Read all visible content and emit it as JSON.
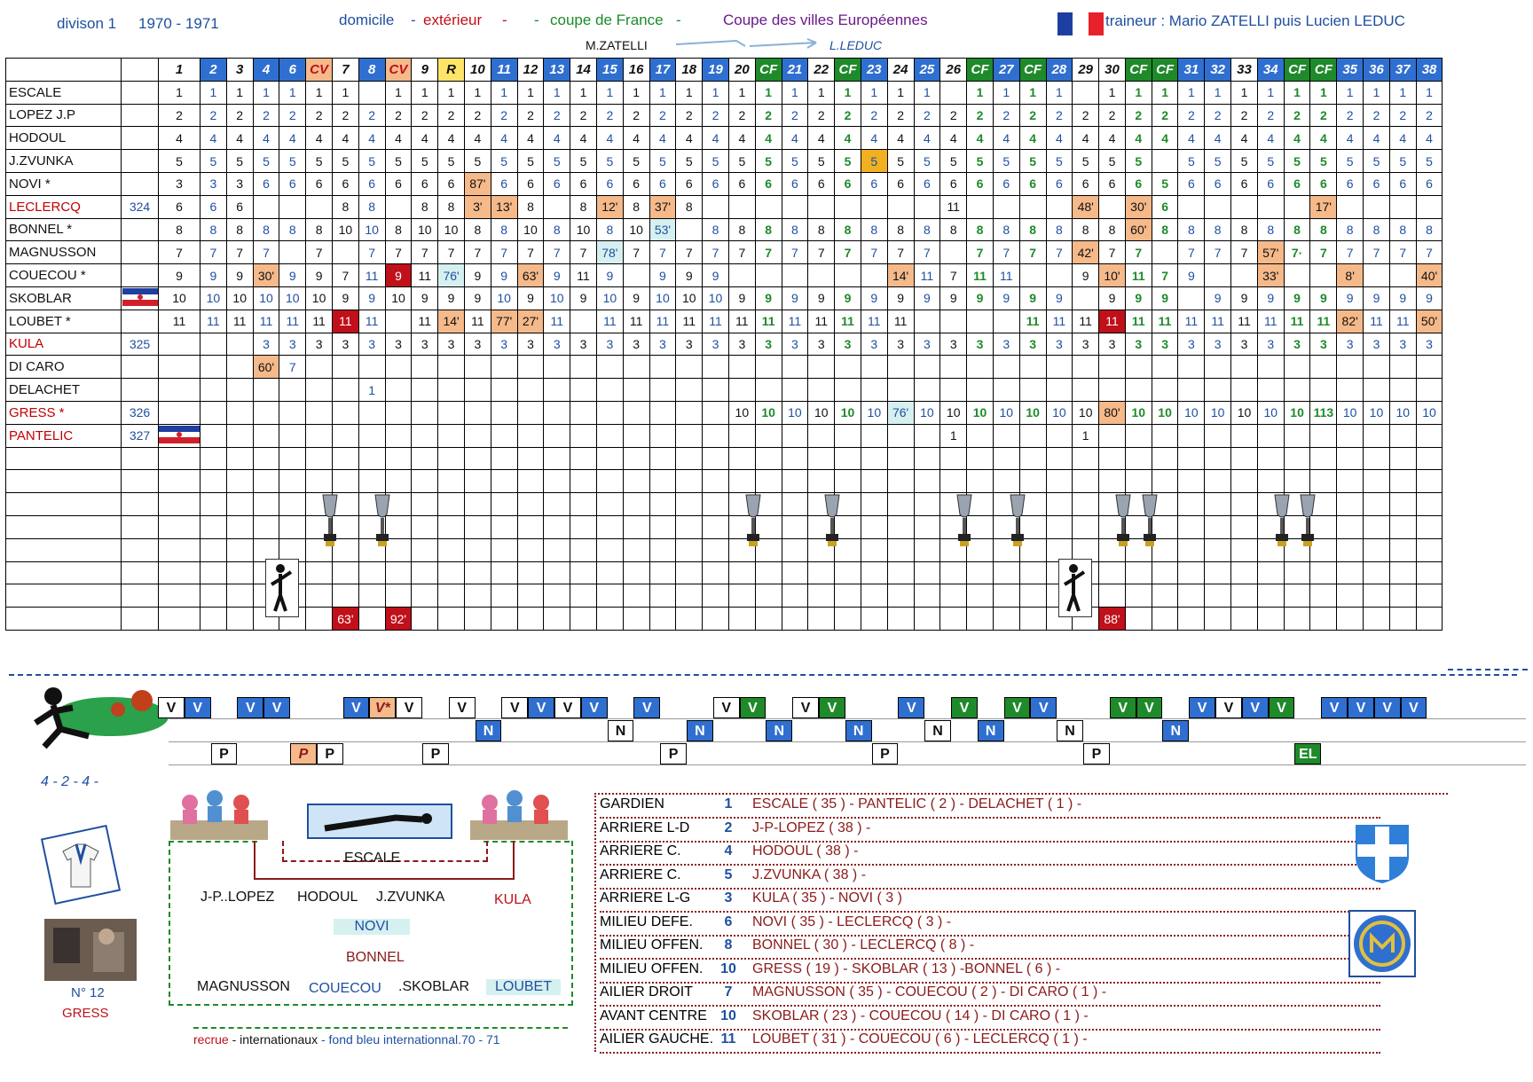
{
  "header": {
    "season_label": "divison 1",
    "season_years": "1970 - 1971",
    "legend_home": "domicile",
    "legend_away": "extérieur",
    "legend_cup": "coupe de France",
    "legend_euro": "Coupe des villes Européennes",
    "legend_sep1": "-",
    "legend_sep2": "-",
    "legend_sep3": "-",
    "legend_sep4": "-",
    "coach": "traineur  : Mario ZATELLI puis Lucien LEDUC",
    "coach_from": "M.ZATELLI",
    "coach_to": "L.LEDUC"
  },
  "columns": [
    "1",
    "2",
    "3",
    "4",
    "6",
    "CV",
    "7",
    "8",
    "CV",
    "9",
    "R",
    "10",
    "11",
    "12",
    "13",
    "14",
    "15",
    "16",
    "17",
    "18",
    "19",
    "20",
    "CF",
    "21",
    "22",
    "CF",
    "23",
    "24",
    "25",
    "26",
    "CF",
    "27",
    "CF",
    "28",
    "29",
    "30",
    "CF",
    "CF",
    "31",
    "32",
    "33",
    "34",
    "CF",
    "CF",
    "35",
    "36",
    "37",
    "38"
  ],
  "column_styles": [
    "w",
    "b",
    "w",
    "b",
    "b",
    "o",
    "w",
    "b",
    "o",
    "w",
    "y",
    "w",
    "b",
    "w",
    "b",
    "w",
    "b",
    "w",
    "b",
    "w",
    "b",
    "w",
    "g",
    "b",
    "w",
    "g",
    "b",
    "w",
    "b",
    "w",
    "g",
    "b",
    "g",
    "b",
    "w",
    "w",
    "g",
    "g",
    "b",
    "b",
    "w",
    "b",
    "g",
    "g",
    "b",
    "b",
    "b",
    "b"
  ],
  "players": [
    {
      "name": "ESCALE",
      "num": "",
      "red": false,
      "icon": "goalkeeper-icon",
      "cells": [
        "1",
        "1",
        "1",
        "1",
        "1",
        "1",
        "1",
        "",
        "1",
        "1",
        "1",
        "1",
        "1",
        "1",
        "1",
        "1",
        "1",
        "1",
        "1",
        "1",
        "1",
        "1",
        "1",
        "1",
        "1",
        "1",
        "1",
        "1",
        "1",
        "",
        "1",
        "1",
        "1",
        "1",
        "",
        "1",
        "1",
        "1",
        "1",
        "1",
        "1",
        "1",
        "1",
        "1",
        "1",
        "1",
        "1",
        "1"
      ]
    },
    {
      "name": "LOPEZ J.P",
      "num": "",
      "red": false,
      "cells": [
        "2",
        "2",
        "2",
        "2",
        "2",
        "2",
        "2",
        "2",
        "2",
        "2",
        "2",
        "2",
        "2",
        "2",
        "2",
        "2",
        "2",
        "2",
        "2",
        "2",
        "2",
        "2",
        "2",
        "2",
        "2",
        "2",
        "2",
        "2",
        "2",
        "2",
        "2",
        "2",
        "2",
        "2",
        "2",
        "2",
        "2",
        "2",
        "2",
        "2",
        "2",
        "2",
        "2",
        "2",
        "2",
        "2",
        "2",
        "2"
      ]
    },
    {
      "name": "HODOUL",
      "num": "",
      "red": false,
      "cells": [
        "4",
        "4",
        "4",
        "4",
        "4",
        "4",
        "4",
        "4",
        "4",
        "4",
        "4",
        "4",
        "4",
        "4",
        "4",
        "4",
        "4",
        "4",
        "4",
        "4",
        "4",
        "4",
        "4",
        "4",
        "4",
        "4",
        "4",
        "4",
        "4",
        "4",
        "4",
        "4",
        "4",
        "4",
        "4",
        "4",
        "4",
        "4",
        "4",
        "4",
        "4",
        "4",
        "4",
        "4",
        "4",
        "4",
        "4",
        "4"
      ]
    },
    {
      "name": "J.ZVUNKA",
      "num": "",
      "red": false,
      "cells": [
        "5",
        "5",
        "5",
        "5",
        "5",
        "5",
        "5",
        "5",
        "5",
        "5",
        "5",
        "5",
        "5",
        "5",
        "5",
        "5",
        "5",
        "5",
        "5",
        "5",
        "5",
        "5",
        "5",
        "5",
        "5",
        "5",
        "5",
        "5",
        "5",
        "5",
        "5",
        "5",
        "5",
        "5",
        "5",
        "5",
        "5",
        "",
        "5",
        "5",
        "5",
        "5",
        "5",
        "5",
        "5",
        "5",
        "5",
        "5"
      ]
    },
    {
      "name": "NOVI *",
      "num": "",
      "red": false,
      "cells": [
        "3",
        "3",
        "3",
        "6",
        "6",
        "6",
        "6",
        "6",
        "6",
        "6",
        "6",
        "87'",
        "6",
        "6",
        "6",
        "6",
        "6",
        "6",
        "6",
        "6",
        "6",
        "6",
        "6",
        "6",
        "6",
        "6",
        "6",
        "6",
        "6",
        "6",
        "6",
        "6",
        "6",
        "6",
        "6",
        "6",
        "6",
        "5",
        "6",
        "6",
        "6",
        "6",
        "6",
        "6",
        "6",
        "6",
        "6",
        "6"
      ]
    },
    {
      "name": "LECLERCQ",
      "num": "324",
      "red": true,
      "cells": [
        "6",
        "6",
        "6",
        "",
        "",
        "",
        "8",
        "8",
        "",
        "8",
        "8",
        "3'",
        "13'",
        "8",
        "",
        "8",
        "12'",
        "8",
        "37'",
        "8",
        "",
        "",
        "",
        "",
        "",
        "",
        "",
        "",
        "",
        "11",
        "",
        "",
        "",
        "",
        "48'",
        "",
        "30'",
        "6",
        "",
        "",
        "",
        "",
        "",
        "17'",
        "",
        "",
        "",
        ""
      ]
    },
    {
      "name": "BONNEL *",
      "num": "",
      "red": false,
      "cells": [
        "8",
        "8",
        "8",
        "8",
        "8",
        "8",
        "10",
        "10",
        "8",
        "10",
        "10",
        "8",
        "8",
        "10",
        "8",
        "10",
        "8",
        "10",
        "53'",
        "",
        "8",
        "8",
        "8",
        "8",
        "8",
        "8",
        "8",
        "8",
        "8",
        "8",
        "8",
        "8",
        "8",
        "8",
        "8",
        "8",
        "60'",
        "8",
        "8",
        "8",
        "8",
        "8",
        "8",
        "8",
        "8",
        "8",
        "8",
        "8"
      ]
    },
    {
      "name": "MAGNUSSON",
      "num": "",
      "red": false,
      "icon": "sweden-flag-icon",
      "cells": [
        "7",
        "7",
        "7",
        "7",
        "",
        "7",
        "",
        "7",
        "7",
        "7",
        "7",
        "7",
        "7",
        "7",
        "7",
        "7",
        "78'",
        "7",
        "7",
        "7",
        "7",
        "7",
        "7",
        "7",
        "7",
        "7",
        "7",
        "7",
        "7",
        "",
        "7",
        "7",
        "7",
        "7",
        "42'",
        "7",
        "7",
        "",
        "7",
        "7",
        "7",
        "57'",
        "7·",
        "7",
        "7",
        "7",
        "7",
        "7"
      ]
    },
    {
      "name": "COUECOU *",
      "num": "",
      "red": false,
      "cells": [
        "9",
        "9",
        "9",
        "30'",
        "9",
        "9",
        "7",
        "11",
        "9",
        "11",
        "76'",
        "9",
        "9",
        "63'",
        "9",
        "11",
        "9",
        "",
        "9",
        "9",
        "9",
        "",
        "",
        "",
        "",
        "",
        "",
        "14'",
        "11",
        "7",
        "11",
        "11",
        "",
        "",
        "9",
        "10'",
        "11",
        "7",
        "9",
        "",
        "",
        "33'",
        "",
        "",
        "8'",
        "",
        "",
        "40'"
      ]
    },
    {
      "name": "SKOBLAR",
      "num": "",
      "red": false,
      "icon": "yugoslavia-flag-icon",
      "cells": [
        "10",
        "10",
        "10",
        "10",
        "10",
        "10",
        "9",
        "9",
        "10",
        "9",
        "9",
        "9",
        "10",
        "9",
        "10",
        "9",
        "10",
        "9",
        "10",
        "10",
        "10",
        "9",
        "9",
        "9",
        "9",
        "9",
        "9",
        "9",
        "9",
        "9",
        "9",
        "9",
        "9",
        "9",
        "",
        "9",
        "9",
        "9",
        "",
        "9",
        "9",
        "9",
        "9",
        "9",
        "9",
        "9",
        "9",
        "9"
      ]
    },
    {
      "name": "LOUBET *",
      "num": "",
      "red": false,
      "cells": [
        "11",
        "11",
        "11",
        "11",
        "11",
        "11",
        "11",
        "11",
        "",
        "11",
        "14'",
        "11",
        "77'",
        "27'",
        "11",
        "",
        "11",
        "11",
        "11",
        "11",
        "11",
        "11",
        "11",
        "11",
        "11",
        "11",
        "11",
        "11",
        "",
        "",
        "",
        "",
        "11",
        "11",
        "11",
        "11",
        "11",
        "11",
        "11",
        "11",
        "11",
        "11",
        "11",
        "11",
        "82'",
        "11",
        "11",
        "50'"
      ]
    },
    {
      "name": "KULA",
      "num": "325",
      "red": true,
      "cells": [
        "",
        "",
        "",
        "3",
        "3",
        "3",
        "3",
        "3",
        "3",
        "3",
        "3",
        "3",
        "3",
        "3",
        "3",
        "3",
        "3",
        "3",
        "3",
        "3",
        "3",
        "3",
        "3",
        "3",
        "3",
        "3",
        "3",
        "3",
        "3",
        "3",
        "3",
        "3",
        "3",
        "3",
        "3",
        "3",
        "3",
        "3",
        "3",
        "3",
        "3",
        "3",
        "3",
        "3",
        "3",
        "3",
        "3",
        "3"
      ]
    },
    {
      "name": "DI CARO",
      "num": "",
      "red": false,
      "cells": [
        "",
        "",
        "",
        "60'",
        "7",
        "",
        "",
        "",
        "",
        "",
        "",
        "",
        "",
        "",
        "",
        "",
        "",
        "",
        "",
        "",
        "",
        "",
        "",
        "",
        "",
        "",
        "",
        "",
        "",
        "",
        "",
        "",
        "",
        "",
        "",
        "",
        "",
        "",
        "",
        "",
        "",
        "",
        "",
        "",
        "",
        "",
        "",
        ""
      ]
    },
    {
      "name": "DELACHET",
      "num": "",
      "red": false,
      "cells": [
        "",
        "",
        "",
        "",
        "",
        "",
        "",
        "1",
        "",
        "",
        "",
        "",
        "",
        "",
        "",
        "",
        "",
        "",
        "",
        "",
        "",
        "",
        "",
        "",
        "",
        "",
        "",
        "",
        "",
        "",
        "",
        "",
        "",
        "",
        "",
        "",
        "",
        "",
        "",
        "",
        "",
        "",
        "",
        "",
        "",
        "",
        "",
        ""
      ]
    },
    {
      "name": "GRESS *",
      "num": "326",
      "red": true,
      "cells": [
        "",
        "",
        "",
        "",
        "",
        "",
        "",
        "",
        "",
        "",
        "",
        "",
        "",
        "",
        "",
        "",
        "",
        "",
        "",
        "",
        "",
        "10",
        "10",
        "10",
        "10",
        "10",
        "10",
        "76'",
        "10",
        "10",
        "10",
        "10",
        "10",
        "10",
        "10",
        "80'",
        "10",
        "10",
        "10",
        "10",
        "10",
        "10",
        "10",
        "113",
        "10",
        "10",
        "10",
        "10"
      ]
    },
    {
      "name": "PANTELIC",
      "num": "327",
      "red": true,
      "icon": "yugoslavia-flag-icon",
      "cells": [
        "",
        "",
        "",
        "",
        "",
        "",
        "",
        "",
        "",
        "",
        "",
        "",
        "",
        "",
        "",
        "",
        "",
        "",
        "",
        "",
        "",
        "",
        "",
        "",
        "",
        "",
        "",
        "",
        "",
        "1",
        "",
        "",
        "",
        "",
        "1",
        "",
        "",
        "",
        "",
        "",
        "",
        "",
        "",
        "",
        "",
        "",
        "",
        ""
      ]
    }
  ],
  "minute_cells": [
    {
      "col": 6,
      "text": "63'"
    },
    {
      "col": 8,
      "text": "92'"
    },
    {
      "col": 35,
      "text": "88'"
    }
  ],
  "results": {
    "v_row": [
      {
        "col": 0,
        "t": "V",
        "s": "w"
      },
      {
        "col": 1,
        "t": "V",
        "s": "b"
      },
      {
        "col": 3,
        "t": "V",
        "s": "b"
      },
      {
        "col": 4,
        "t": "V",
        "s": "b"
      },
      {
        "col": 7,
        "t": "V",
        "s": "b"
      },
      {
        "col": 8,
        "t": "V*",
        "s": "o"
      },
      {
        "col": 9,
        "t": "V",
        "s": "w"
      },
      {
        "col": 11,
        "t": "V",
        "s": "w"
      },
      {
        "col": 13,
        "t": "V",
        "s": "w"
      },
      {
        "col": 14,
        "t": "V",
        "s": "b"
      },
      {
        "col": 15,
        "t": "V",
        "s": "w"
      },
      {
        "col": 16,
        "t": "V",
        "s": "b"
      },
      {
        "col": 18,
        "t": "V",
        "s": "b"
      },
      {
        "col": 21,
        "t": "V",
        "s": "w"
      },
      {
        "col": 22,
        "t": "V",
        "s": "g"
      },
      {
        "col": 24,
        "t": "V",
        "s": "w"
      },
      {
        "col": 25,
        "t": "V",
        "s": "g"
      },
      {
        "col": 28,
        "t": "V",
        "s": "b"
      },
      {
        "col": 30,
        "t": "V",
        "s": "g"
      },
      {
        "col": 32,
        "t": "V",
        "s": "g"
      },
      {
        "col": 33,
        "t": "V",
        "s": "b"
      },
      {
        "col": 36,
        "t": "V",
        "s": "g"
      },
      {
        "col": 37,
        "t": "V",
        "s": "g"
      },
      {
        "col": 39,
        "t": "V",
        "s": "b"
      },
      {
        "col": 40,
        "t": "V",
        "s": "w"
      },
      {
        "col": 41,
        "t": "V",
        "s": "b"
      },
      {
        "col": 42,
        "t": "V",
        "s": "g"
      },
      {
        "col": 44,
        "t": "V",
        "s": "b"
      },
      {
        "col": 45,
        "t": "V",
        "s": "b"
      },
      {
        "col": 46,
        "t": "V",
        "s": "b"
      },
      {
        "col": 47,
        "t": "V",
        "s": "b"
      }
    ],
    "n_row": [
      {
        "col": 12,
        "t": "N",
        "s": "b"
      },
      {
        "col": 17,
        "t": "N",
        "s": "w"
      },
      {
        "col": 20,
        "t": "N",
        "s": "b"
      },
      {
        "col": 23,
        "t": "N",
        "s": "b"
      },
      {
        "col": 26,
        "t": "N",
        "s": "b"
      },
      {
        "col": 29,
        "t": "N",
        "s": "w"
      },
      {
        "col": 31,
        "t": "N",
        "s": "b"
      },
      {
        "col": 34,
        "t": "N",
        "s": "w"
      },
      {
        "col": 38,
        "t": "N",
        "s": "b"
      }
    ],
    "p_row": [
      {
        "col": 2,
        "t": "P",
        "s": "w"
      },
      {
        "col": 5,
        "t": "P",
        "s": "o"
      },
      {
        "col": 6,
        "t": "P",
        "s": "w"
      },
      {
        "col": 10,
        "t": "P",
        "s": "w"
      },
      {
        "col": 19,
        "t": "P",
        "s": "w"
      },
      {
        "col": 27,
        "t": "P",
        "s": "w"
      },
      {
        "col": 35,
        "t": "P",
        "s": "w"
      },
      {
        "col": 43,
        "t": "EL",
        "s": "g"
      }
    ]
  },
  "formation": "4 - 2 - 4 -",
  "gress_caption": "N° 12",
  "gress_name": "GRESS",
  "lineup": {
    "gk": "ESCALE",
    "def1": "J-P..LOPEZ",
    "def2": "HODOUL",
    "def3": "J.ZVUNKA",
    "def4": "KULA",
    "mid1": "NOVI",
    "mid2": "BONNEL",
    "fw1": "MAGNUSSON",
    "fw2": "COUECOU",
    "fw3": ".SKOBLAR",
    "fw4": "LOUBET"
  },
  "footer_legend": {
    "recruit": "recrue",
    "sep1": "-",
    "internationals": "internationaux",
    "sep2": "-",
    "blue_bg": "fond bleu internationnal.70 - 71"
  },
  "positions": [
    {
      "label": "GARDIEN",
      "num": "1",
      "players": "ESCALE  ( 35 ) - PANTELIC ( 2 ) - DELACHET ( 1 ) -"
    },
    {
      "label": "ARRIERE L-D",
      "num": "2",
      "players": "J-P-LOPEZ ( 38 ) -"
    },
    {
      "label": "ARRIERE C.",
      "num": "4",
      "players": "HODOUL ( 38 ) -"
    },
    {
      "label": "ARRIERE C.",
      "num": "5",
      "players": "J.ZVUNKA ( 38 ) -"
    },
    {
      "label": "ARRIERE L-G",
      "num": "3",
      "players": "KULA ( 35 ) - NOVI ( 3 )"
    },
    {
      "label": "MILIEU DEFE.",
      "num": "6",
      "players": "NOVI ( 35 ) - LECLERCQ ( 3 ) -"
    },
    {
      "label": "MILIEU OFFEN.",
      "num": "8",
      "players": "BONNEL ( 30 ) - LECLERCQ ( 8 ) -"
    },
    {
      "label": "MILIEU OFFEN.",
      "num": "10",
      "players": "GRESS ( 19 ) - SKOBLAR ( 13 ) -BONNEL ( 6 ) -"
    },
    {
      "label": "AILIER DROIT",
      "num": "7",
      "players": "MAGNUSSON ( 35 ) - COUECOU ( 2 ) - DI CARO ( 1 ) -"
    },
    {
      "label": "AVANT CENTRE",
      "num": "10",
      "players": "SKOBLAR ( 23 ) - COUECOU ( 14 ) -  DI CARO ( 1 ) -"
    },
    {
      "label": "AILIER GAUCHE.",
      "num": "11",
      "players": "LOUBET ( 31 ) - COUECOU ( 6 ) - LECLERCQ ( 1 ) -"
    }
  ],
  "colors": {
    "blue": "#2f6fd0",
    "green": "#1e8a2a",
    "orange": "#f5b98a",
    "yellow": "#ffe46a",
    "red": "#c0101a",
    "navy": "#1f4fa0",
    "maroon": "#8b1a1a"
  }
}
